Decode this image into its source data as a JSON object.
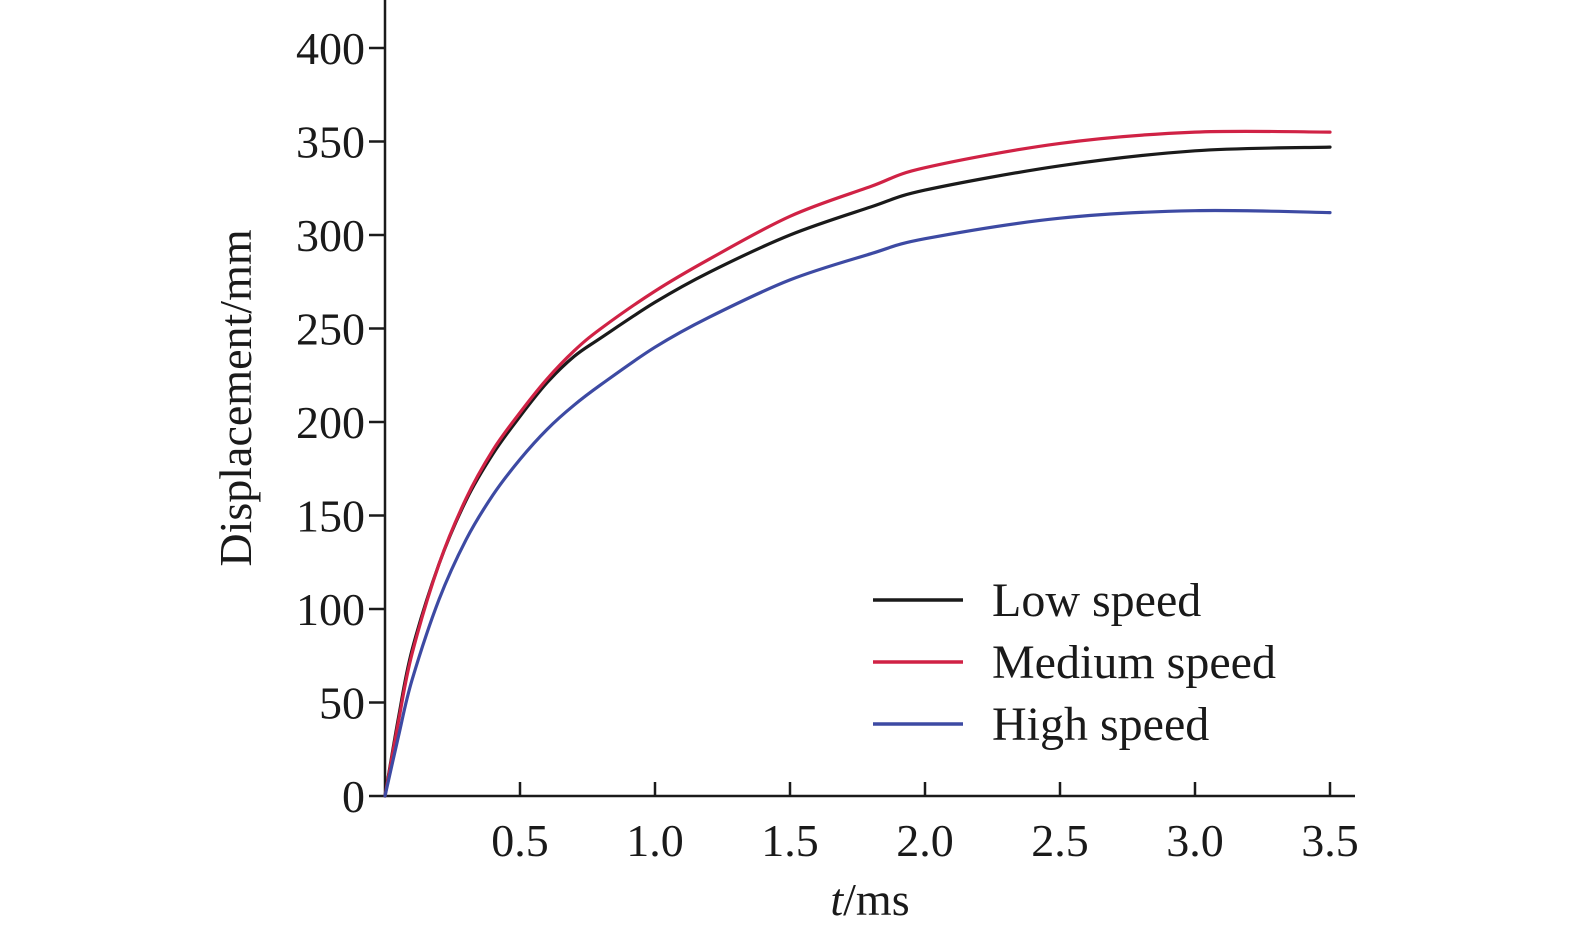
{
  "chart_data": {
    "type": "line",
    "title": "",
    "xlabel_italic": "t",
    "xlabel_rest": "/ms",
    "ylabel": "Displacement/mm",
    "xlim": [
      0,
      3.6
    ],
    "ylim": [
      0,
      400
    ],
    "x_ticks": [
      0.5,
      1.0,
      1.5,
      2.0,
      2.5,
      3.0,
      3.5
    ],
    "x_tick_labels": [
      "0.5",
      "1.0",
      "1.5",
      "2.0",
      "2.5",
      "3.0",
      "3.5"
    ],
    "y_ticks": [
      0,
      50,
      100,
      150,
      200,
      250,
      300,
      350,
      400
    ],
    "y_tick_labels": [
      "0",
      "50",
      "100",
      "150",
      "200",
      "250",
      "300",
      "350",
      "400"
    ],
    "grid": false,
    "legend_position": "bottom-right",
    "x": [
      0,
      0.05,
      0.1,
      0.2,
      0.3,
      0.4,
      0.5,
      0.6,
      0.7,
      0.8,
      1.0,
      1.2,
      1.5,
      1.8,
      2.0,
      2.5,
      3.0,
      3.5
    ],
    "series": [
      {
        "name": "Low speed",
        "color": "#1a1a1a",
        "values": [
          0,
          42,
          78,
          124,
          158,
          183,
          203,
          221,
          235,
          245,
          264,
          280,
          300,
          315,
          324,
          337,
          345,
          347
        ]
      },
      {
        "name": "Medium speed",
        "color": "#d02245",
        "values": [
          0,
          40,
          76,
          124,
          159,
          185,
          205,
          223,
          238,
          250,
          270,
          287,
          310,
          326,
          336,
          349,
          355,
          355
        ]
      },
      {
        "name": "High speed",
        "color": "#3d4aa3",
        "values": [
          0,
          32,
          62,
          105,
          137,
          161,
          180,
          196,
          209,
          220,
          240,
          256,
          276,
          290,
          298,
          309,
          313,
          312
        ]
      }
    ]
  }
}
